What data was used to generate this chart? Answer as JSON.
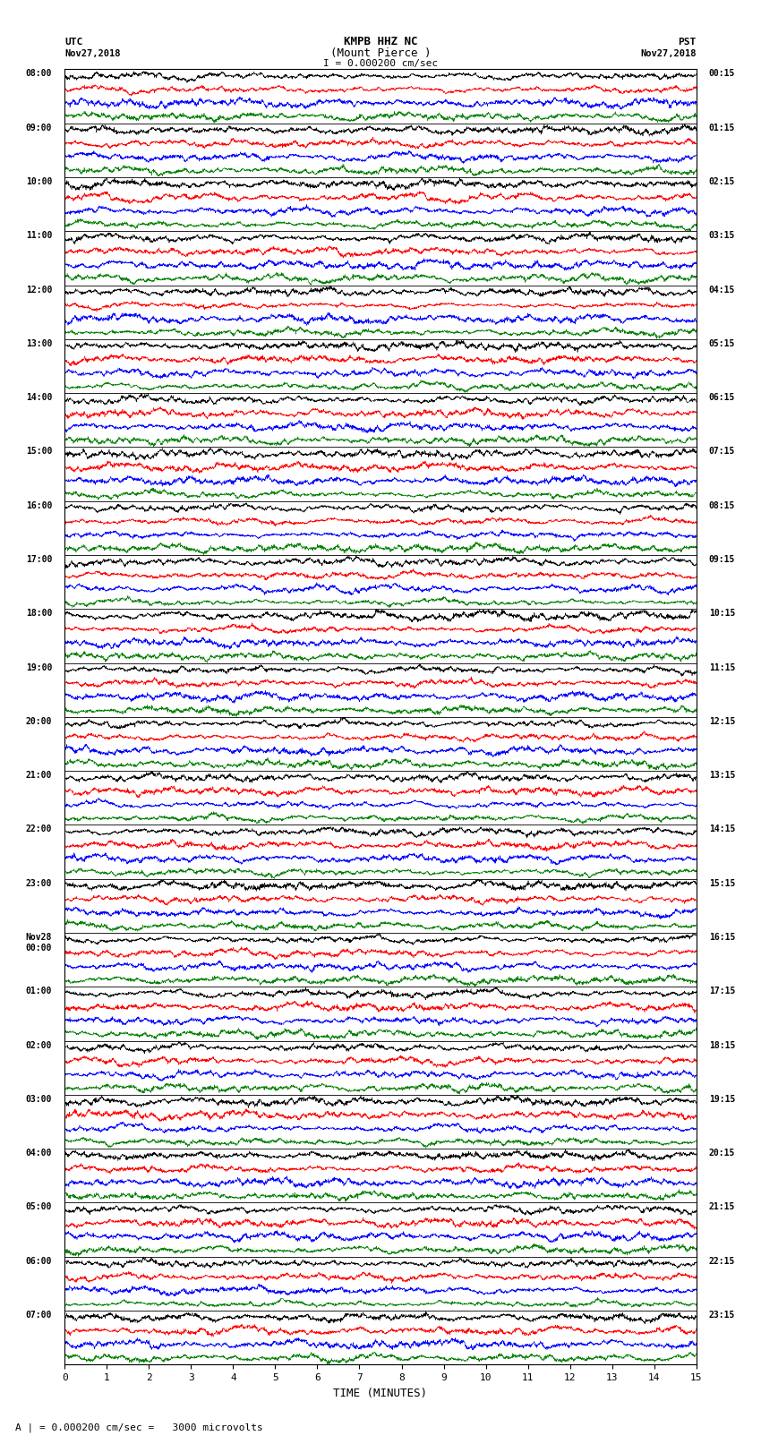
{
  "title_line1": "KMPB HHZ NC",
  "title_line2": "(Mount Pierce )",
  "scale_text": "I = 0.000200 cm/sec",
  "utc_label": "UTC",
  "pst_label": "PST",
  "date_left": "Nov27,2018",
  "date_right": "Nov27,2018",
  "bottom_label": "A | = 0.000200 cm/sec =   3000 microvolts",
  "xlabel": "TIME (MINUTES)",
  "left_times": [
    "08:00",
    "09:00",
    "10:00",
    "11:00",
    "12:00",
    "13:00",
    "14:00",
    "15:00",
    "16:00",
    "17:00",
    "18:00",
    "19:00",
    "20:00",
    "21:00",
    "22:00",
    "23:00",
    "Nov28\n00:00",
    "01:00",
    "02:00",
    "03:00",
    "04:00",
    "05:00",
    "06:00",
    "07:00"
  ],
  "right_times": [
    "00:15",
    "01:15",
    "02:15",
    "03:15",
    "04:15",
    "05:15",
    "06:15",
    "07:15",
    "08:15",
    "09:15",
    "10:15",
    "11:15",
    "12:15",
    "13:15",
    "14:15",
    "15:15",
    "16:15",
    "17:15",
    "18:15",
    "19:15",
    "20:15",
    "21:15",
    "22:15",
    "23:15"
  ],
  "n_rows": 24,
  "minutes_per_row": 15,
  "sub_colors": [
    "black",
    "red",
    "blue",
    "green"
  ],
  "bg_color": "white",
  "fig_width": 8.5,
  "fig_height": 16.13,
  "dpi": 100
}
